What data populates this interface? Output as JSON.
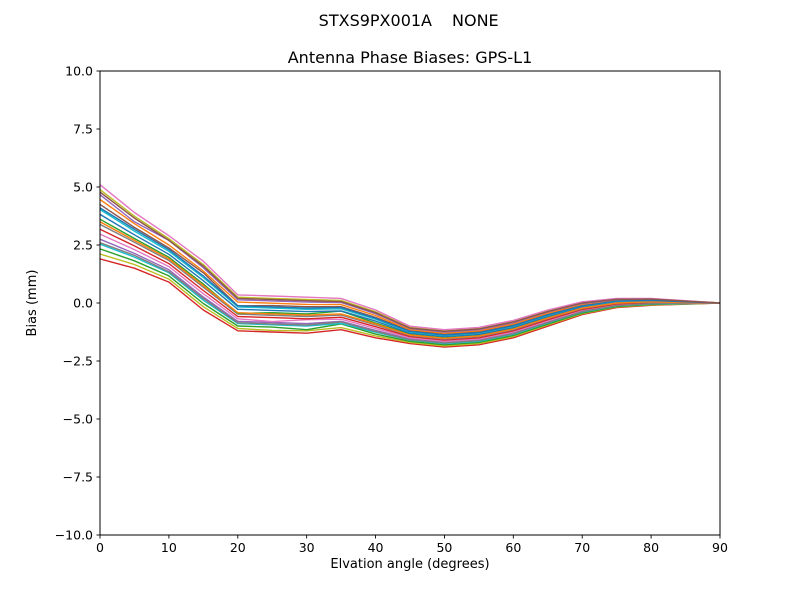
{
  "chart_data": {
    "type": "line",
    "suptitle_left": "STXS9PX001A",
    "suptitle_right": "NONE",
    "title": "Antenna Phase Biases: GPS-L1",
    "xlabel": "Elvation angle (degrees)",
    "ylabel": "Bias (mm)",
    "xlim": [
      0,
      90
    ],
    "ylim": [
      -10,
      10
    ],
    "grid": false,
    "legend": "none",
    "xticks": [
      0,
      10,
      20,
      30,
      40,
      50,
      60,
      70,
      80,
      90
    ],
    "xtick_labels": [
      "0",
      "10",
      "20",
      "30",
      "40",
      "50",
      "60",
      "70",
      "80",
      "90"
    ],
    "yticks": [
      10,
      7.5,
      5,
      2.5,
      0,
      -2.5,
      -5,
      -7.5,
      -10
    ],
    "ytick_labels": [
      "10.0",
      "7.5",
      "5.0",
      "2.5",
      "0.0",
      "−2.5",
      "−5.0",
      "−7.5",
      "−10.0"
    ],
    "axis_color": "#000000",
    "x": [
      0,
      5,
      10,
      15,
      20,
      25,
      30,
      35,
      40,
      45,
      50,
      55,
      60,
      65,
      70,
      75,
      80,
      85,
      90
    ],
    "series": [
      {
        "name": "s1",
        "color": "#d62728",
        "values": [
          1.9,
          1.5,
          0.9,
          -0.3,
          -1.2,
          -1.25,
          -1.3,
          -1.15,
          -1.5,
          -1.75,
          -1.9,
          -1.8,
          -1.5,
          -1.0,
          -0.5,
          -0.2,
          -0.1,
          -0.05,
          0.0
        ]
      },
      {
        "name": "s2",
        "color": "#bcbd22",
        "values": [
          2.11,
          1.66,
          1.03,
          -0.16,
          -1.1,
          -1.18,
          -1.2,
          -1.06,
          -1.42,
          -1.7,
          -1.85,
          -1.75,
          -1.45,
          -0.95,
          -0.46,
          -0.17,
          -0.08,
          -0.04,
          0.0
        ]
      },
      {
        "name": "s3",
        "color": "#2ca02c",
        "values": [
          2.33,
          1.82,
          1.17,
          -0.02,
          -0.99,
          -1.04,
          -1.15,
          -0.9,
          -1.34,
          -1.65,
          -1.8,
          -1.7,
          -1.4,
          -0.91,
          -0.43,
          -0.15,
          -0.06,
          -0.03,
          0.0
        ]
      },
      {
        "name": "s4",
        "color": "#17becf",
        "values": [
          2.54,
          1.98,
          1.3,
          0.12,
          -0.89,
          -0.94,
          -0.99,
          -0.88,
          -1.26,
          -1.6,
          -1.75,
          -1.65,
          -1.35,
          -0.86,
          -0.39,
          -0.12,
          -0.04,
          -0.02,
          0.0
        ]
      },
      {
        "name": "s5",
        "color": "#9467bd",
        "values": [
          2.75,
          2.14,
          1.43,
          0.26,
          -0.79,
          -0.84,
          -0.89,
          -0.79,
          -1.18,
          -1.55,
          -1.7,
          -1.6,
          -1.3,
          -0.81,
          -0.35,
          -0.09,
          -0.02,
          -0.01,
          0.0
        ]
      },
      {
        "name": "s6",
        "color": "#e377c2",
        "values": [
          2.97,
          2.3,
          1.57,
          0.4,
          -0.68,
          -0.8,
          -0.72,
          -0.7,
          -1.1,
          -1.5,
          -1.65,
          -1.55,
          -1.25,
          -0.77,
          -0.32,
          -0.07,
          0.0,
          0.0,
          0.0
        ]
      },
      {
        "name": "s7",
        "color": "#d62728",
        "values": [
          3.18,
          2.46,
          1.7,
          0.54,
          -0.58,
          -0.63,
          -0.68,
          -0.61,
          -1.02,
          -1.45,
          -1.6,
          -1.5,
          -1.2,
          -0.72,
          -0.28,
          -0.04,
          0.02,
          0.01,
          0.0
        ]
      },
      {
        "name": "s8",
        "color": "#7f7f7f",
        "values": [
          3.39,
          2.62,
          1.83,
          0.68,
          -0.48,
          -0.53,
          -0.58,
          -0.52,
          -0.94,
          -1.4,
          -1.55,
          -1.45,
          -1.15,
          -0.67,
          -0.24,
          -0.01,
          0.04,
          0.02,
          0.0
        ]
      },
      {
        "name": "s9",
        "color": "#2ca02c",
        "values": [
          3.61,
          2.78,
          1.97,
          0.82,
          -0.45,
          -0.42,
          -0.47,
          -0.35,
          -0.86,
          -1.35,
          -1.5,
          -1.4,
          -1.1,
          -0.63,
          -0.21,
          0.01,
          0.06,
          0.03,
          0.0
        ]
      },
      {
        "name": "s10",
        "color": "#1f77b4",
        "values": [
          3.82,
          2.94,
          2.1,
          0.96,
          -0.27,
          -0.32,
          -0.37,
          -0.34,
          -0.78,
          -1.3,
          -1.45,
          -1.35,
          -1.05,
          -0.58,
          -0.17,
          0.04,
          0.08,
          0.04,
          0.0
        ]
      },
      {
        "name": "s11",
        "color": "#17becf",
        "values": [
          4.03,
          3.1,
          2.23,
          1.1,
          -0.17,
          -0.22,
          -0.27,
          -0.25,
          -0.7,
          -1.25,
          -1.4,
          -1.3,
          -1.0,
          -0.53,
          -0.13,
          0.07,
          0.1,
          0.05,
          0.0
        ]
      },
      {
        "name": "s12",
        "color": "#8c564b",
        "values": [
          4.25,
          3.26,
          2.37,
          1.3,
          -0.12,
          -0.11,
          -0.16,
          -0.16,
          -0.62,
          -1.2,
          -1.35,
          -1.25,
          -0.95,
          -0.49,
          -0.1,
          0.09,
          0.12,
          0.06,
          0.0
        ]
      },
      {
        "name": "s13",
        "color": "#ff7f0e",
        "values": [
          4.46,
          3.42,
          2.5,
          1.38,
          0.04,
          -0.01,
          -0.06,
          -0.07,
          -0.54,
          -1.15,
          -1.3,
          -1.2,
          -0.9,
          -0.44,
          -0.06,
          0.12,
          0.14,
          0.07,
          0.0
        ]
      },
      {
        "name": "s14",
        "color": "#9467bd",
        "values": [
          4.67,
          3.5,
          2.7,
          1.52,
          0.14,
          0.09,
          0.04,
          0.02,
          -0.46,
          -1.1,
          -1.25,
          -1.15,
          -0.85,
          -0.39,
          -0.02,
          0.15,
          0.16,
          0.08,
          0.0
        ]
      },
      {
        "name": "s15",
        "color": "#bcbd22",
        "values": [
          4.89,
          3.74,
          2.77,
          1.66,
          0.25,
          0.2,
          0.15,
          0.11,
          -0.38,
          -1.05,
          -1.2,
          -1.1,
          -0.8,
          -0.35,
          0.01,
          0.17,
          0.18,
          0.09,
          0.0
        ]
      },
      {
        "name": "s16",
        "color": "#e377c2",
        "values": [
          5.1,
          3.9,
          2.9,
          1.8,
          0.35,
          0.3,
          0.25,
          0.2,
          -0.3,
          -1.0,
          -1.15,
          -1.05,
          -0.75,
          -0.3,
          0.05,
          0.2,
          0.2,
          0.1,
          0.0
        ]
      },
      {
        "name": "s17",
        "color": "#7f7f7f",
        "values": [
          2.6,
          2.05,
          1.35,
          0.2,
          -0.85,
          -0.9,
          -0.95,
          -0.82,
          -1.22,
          -1.58,
          -1.72,
          -1.62,
          -1.32,
          -0.84,
          -0.37,
          -0.11,
          -0.03,
          -0.01,
          0.0
        ]
      },
      {
        "name": "s18",
        "color": "#ff7f0e",
        "values": [
          3.5,
          2.7,
          1.9,
          0.75,
          -0.42,
          -0.47,
          -0.52,
          -0.47,
          -0.9,
          -1.38,
          -1.52,
          -1.42,
          -1.12,
          -0.65,
          -0.22,
          0.0,
          0.05,
          0.02,
          0.0
        ]
      },
      {
        "name": "s19",
        "color": "#1f77b4",
        "values": [
          4.1,
          3.18,
          2.3,
          1.17,
          -0.12,
          -0.17,
          -0.22,
          -0.2,
          -0.66,
          -1.22,
          -1.38,
          -1.28,
          -0.98,
          -0.51,
          -0.12,
          0.08,
          0.11,
          0.05,
          0.0
        ]
      },
      {
        "name": "s20",
        "color": "#8c564b",
        "values": [
          4.78,
          3.66,
          2.7,
          1.59,
          0.2,
          0.15,
          0.1,
          0.06,
          -0.42,
          -1.08,
          -1.22,
          -1.12,
          -0.82,
          -0.37,
          0.0,
          0.16,
          0.17,
          0.08,
          0.0
        ]
      }
    ]
  }
}
